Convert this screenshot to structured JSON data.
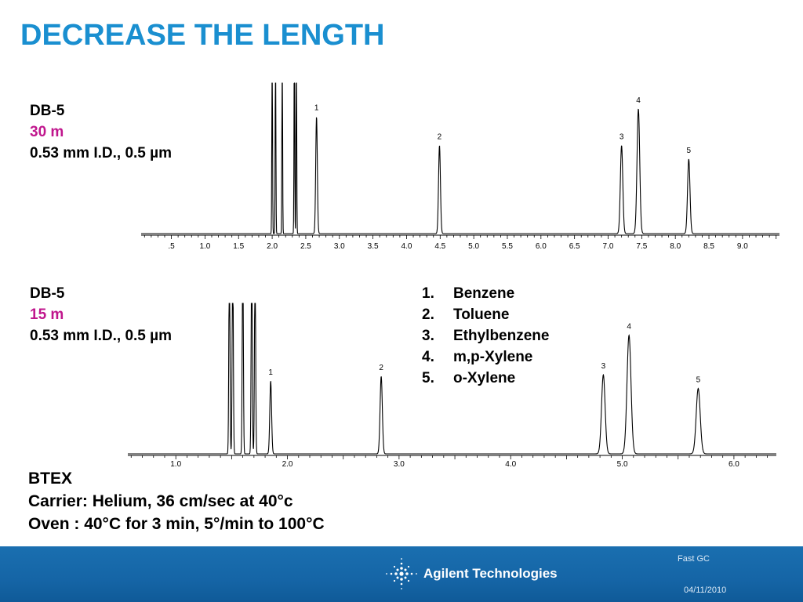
{
  "title": "DECREASE THE LENGTH",
  "column1": {
    "phase": "DB-5",
    "length": "30 m",
    "dims": "0.53 mm I.D., 0.5 µm"
  },
  "column2": {
    "phase": "DB-5",
    "length": "15 m",
    "dims": "0.53 mm I.D., 0.5 µm"
  },
  "compounds": [
    {
      "num": "1.",
      "name": "Benzene"
    },
    {
      "num": "2.",
      "name": "Toluene"
    },
    {
      "num": "3.",
      "name": "Ethylbenzene"
    },
    {
      "num": "4.",
      "name": "m,p-Xylene"
    },
    {
      "num": "5.",
      "name": "o-Xylene"
    }
  ],
  "conditions": {
    "sample": "BTEX",
    "carrier_label": "Carrier:",
    "carrier_value": "Helium, 36 cm/sec at 40°c",
    "oven_label": "Oven :",
    "oven_value": "40°C for 3 min, 5°/min to 100°C"
  },
  "footer": {
    "topic": "Fast GC",
    "date": "04/11/2010",
    "brand": "Agilent Technologies"
  },
  "colors": {
    "title": "#1a8fd0",
    "column_length": "#c0168d",
    "footer": "#1565a6"
  },
  "chart_data": [
    {
      "type": "line",
      "xlim": [
        0.05,
        9.55
      ],
      "tick_labels": [
        ".5",
        "1.0",
        "1.5",
        "2.0",
        "2.5",
        "3.0",
        "3.5",
        "4.0",
        "4.5",
        "5.0",
        "5.5",
        "6.0",
        "6.5",
        "7.0",
        "7.5",
        "8.0",
        "8.5",
        "9.0"
      ],
      "tick_values": [
        0.5,
        1.0,
        1.5,
        2.0,
        2.5,
        3.0,
        3.5,
        4.0,
        4.5,
        5.0,
        5.5,
        6.0,
        6.5,
        7.0,
        7.5,
        8.0,
        8.5,
        9.0
      ],
      "solvent_peaks": [
        2.0,
        2.05,
        2.15,
        2.33,
        2.36
      ],
      "peaks": [
        {
          "label": "1",
          "rt": 2.66,
          "height": 0.77,
          "width": 0.012
        },
        {
          "label": "2",
          "rt": 4.49,
          "height": 0.58,
          "width": 0.014
        },
        {
          "label": "3",
          "rt": 7.2,
          "height": 0.58,
          "width": 0.018
        },
        {
          "label": "4",
          "rt": 7.45,
          "height": 0.82,
          "width": 0.02
        },
        {
          "label": "5",
          "rt": 8.2,
          "height": 0.49,
          "width": 0.018
        }
      ]
    },
    {
      "type": "line",
      "xlim": [
        0.57,
        6.38
      ],
      "tick_labels": [
        "1.0",
        "2.0",
        "3.0",
        "4.0",
        "5.0",
        "6.0"
      ],
      "tick_values": [
        1.0,
        2.0,
        3.0,
        4.0,
        5.0,
        6.0
      ],
      "solvent_peaks": [
        1.48,
        1.51,
        1.6,
        1.68,
        1.71
      ],
      "peaks": [
        {
          "label": "1",
          "rt": 1.85,
          "height": 0.48,
          "width": 0.008
        },
        {
          "label": "2",
          "rt": 2.84,
          "height": 0.51,
          "width": 0.01
        },
        {
          "label": "3",
          "rt": 4.83,
          "height": 0.52,
          "width": 0.016
        },
        {
          "label": "4",
          "rt": 5.06,
          "height": 0.78,
          "width": 0.018
        },
        {
          "label": "5",
          "rt": 5.68,
          "height": 0.43,
          "width": 0.018
        }
      ]
    }
  ]
}
